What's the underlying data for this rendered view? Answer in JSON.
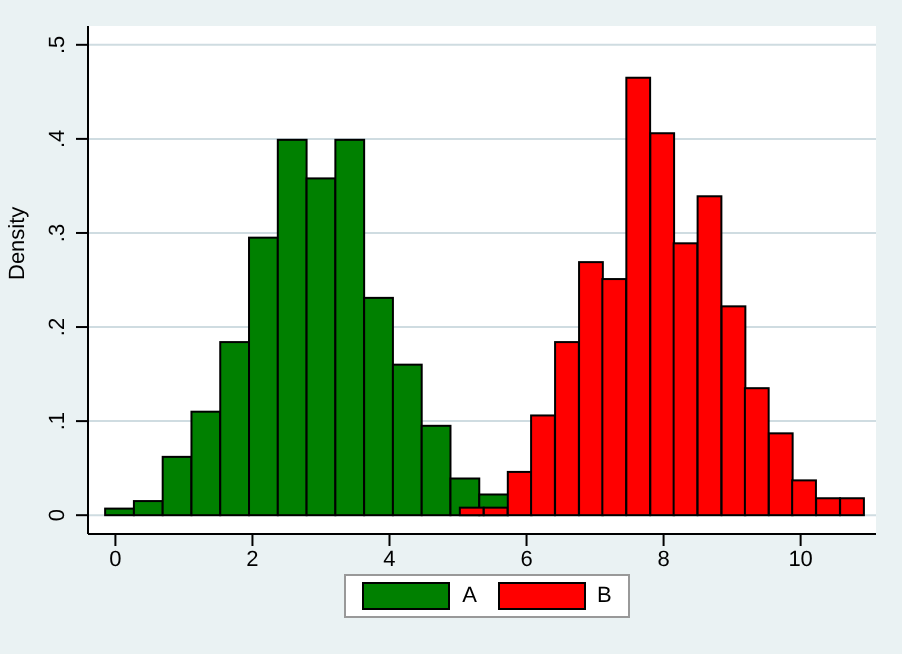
{
  "chart_data": {
    "type": "bar",
    "ylabel": "Density",
    "series": [
      {
        "name": "A",
        "color": "#008000",
        "x": [
          0.06,
          0.48,
          0.9,
          1.32,
          1.74,
          2.16,
          2.58,
          3.0,
          3.42,
          3.84,
          4.26,
          4.68,
          5.1,
          5.52
        ],
        "values": [
          0.007,
          0.015,
          0.062,
          0.11,
          0.184,
          0.295,
          0.399,
          0.358,
          0.399,
          0.231,
          0.16,
          0.095,
          0.039,
          0.022
        ]
      },
      {
        "name": "B",
        "color": "#ff0000",
        "x": [
          5.2,
          5.55,
          5.9,
          6.24,
          6.59,
          6.94,
          7.28,
          7.63,
          7.98,
          8.32,
          8.67,
          9.02,
          9.36,
          9.71,
          10.05,
          10.4,
          10.75
        ],
        "values": [
          0.008,
          0.008,
          0.046,
          0.106,
          0.184,
          0.269,
          0.251,
          0.465,
          0.406,
          0.289,
          0.339,
          0.222,
          0.135,
          0.087,
          0.037,
          0.018,
          0.018
        ]
      }
    ],
    "xlim": [
      -0.4,
      11.1
    ],
    "xticks": [
      0,
      2,
      4,
      6,
      8,
      10
    ],
    "ylim": [
      -0.02,
      0.52
    ],
    "yticks": [
      0,
      {
        "value": 0.1,
        "label": ".1"
      },
      {
        "value": 0.2,
        "label": ".2"
      },
      {
        "value": 0.3,
        "label": ".3"
      },
      {
        "value": 0.4,
        "label": ".4"
      },
      {
        "value": 0.5,
        "label": ".5"
      }
    ],
    "grid": "y",
    "legend": "bottom"
  }
}
